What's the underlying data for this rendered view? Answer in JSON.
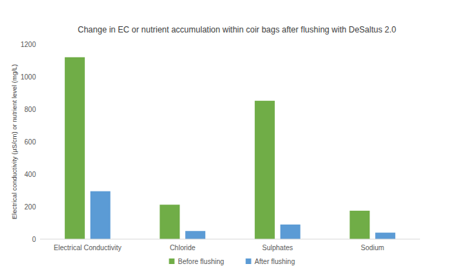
{
  "chart_data": {
    "type": "bar",
    "title": "Change in EC or nutrient accumulation within coir bags after flushing with DeSaltus 2.0",
    "y_label": "Electrical conductivity (µS/cm) or nutrient level (mg/L)",
    "categories": [
      "Electrical Conductivity",
      "Chloride",
      "Sulphates",
      "Sodium"
    ],
    "series": [
      {
        "name": "Before flushing",
        "color": "#70ad47",
        "values": [
          1120,
          212,
          852,
          175
        ]
      },
      {
        "name": "After flushing",
        "color": "#5b9bd5",
        "values": [
          295,
          50,
          90,
          40
        ]
      }
    ],
    "ylim": [
      0,
      1200
    ],
    "yticks": [
      0,
      200,
      400,
      600,
      800,
      1000,
      1200
    ],
    "grid": false,
    "legend": "bottom"
  }
}
